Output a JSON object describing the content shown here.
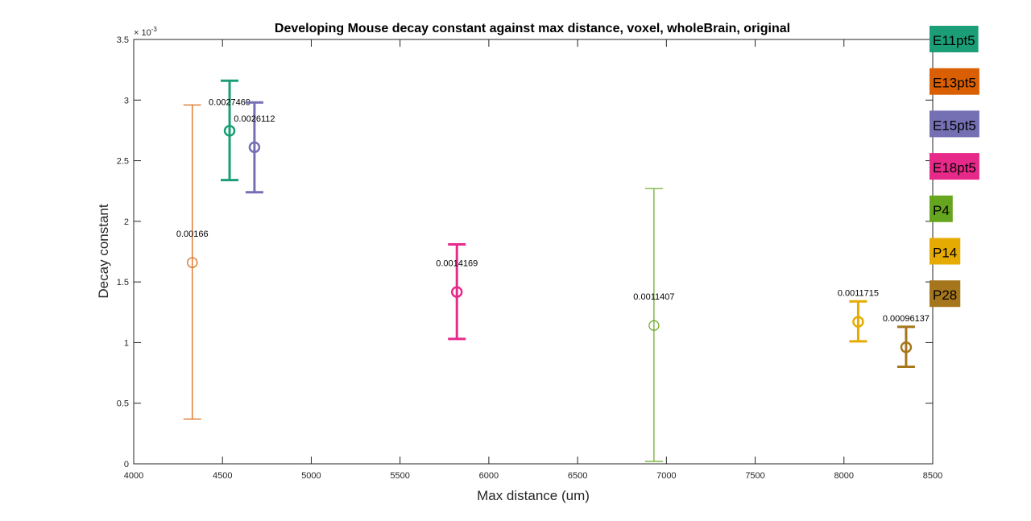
{
  "chart_data": {
    "type": "scatter",
    "title": "Developing Mouse decay constant against max distance, voxel, wholeBrain, original",
    "xlabel": "Max distance (um)",
    "ylabel": "Decay constant",
    "xlim": [
      4000,
      8500
    ],
    "ylim": [
      0,
      0.0035
    ],
    "x_ticks": [
      4000,
      4500,
      5000,
      5500,
      6000,
      6500,
      7000,
      7500,
      8000,
      8500
    ],
    "x_tick_labels": [
      "4000",
      "4500",
      "5000",
      "5500",
      "6000",
      "6500",
      "7000",
      "7500",
      "8000",
      "8500"
    ],
    "y_ticks": [
      0,
      0.0005,
      0.001,
      0.0015,
      0.002,
      0.0025,
      0.003,
      0.0035
    ],
    "y_tick_labels": [
      "0",
      "0.5",
      "1",
      "1.5",
      "2",
      "2.5",
      "3",
      "3.5"
    ],
    "y_exponent_label": "× 10",
    "y_exponent_power": "-3",
    "grid": false,
    "legend_placement": "outside-right",
    "series": [
      {
        "name": "E11pt5",
        "color": "#1b9e77",
        "x": 4540,
        "y": 0.0027469,
        "lower": 0.00234,
        "upper": 0.00316,
        "label": "0.0027469",
        "thick": true
      },
      {
        "name": "E13pt5",
        "color": "#d95f02",
        "x": 4330,
        "y": 0.00166,
        "lower": 0.00037,
        "upper": 0.00296,
        "label": "0.00166",
        "thick": false
      },
      {
        "name": "E15pt5",
        "color": "#7570b3",
        "x": 4680,
        "y": 0.0026112,
        "lower": 0.00224,
        "upper": 0.00298,
        "label": "0.0026112",
        "thick": true
      },
      {
        "name": "E18pt5",
        "color": "#e7298a",
        "x": 5820,
        "y": 0.0014169,
        "lower": 0.00103,
        "upper": 0.00181,
        "label": "0.0014169",
        "thick": true
      },
      {
        "name": "P4",
        "color": "#66a61e",
        "x": 6930,
        "y": 0.0011407,
        "lower": 2e-05,
        "upper": 0.00227,
        "label": "0.0011407",
        "thick": false
      },
      {
        "name": "P14",
        "color": "#e6ab02",
        "x": 8080,
        "y": 0.0011715,
        "lower": 0.00101,
        "upper": 0.00134,
        "label": "0.0011715",
        "thick": true
      },
      {
        "name": "P28",
        "color": "#a6761d",
        "x": 8350,
        "y": 0.00096137,
        "lower": 0.0008,
        "upper": 0.00113,
        "label": "0.00096137",
        "thick": true
      }
    ]
  }
}
